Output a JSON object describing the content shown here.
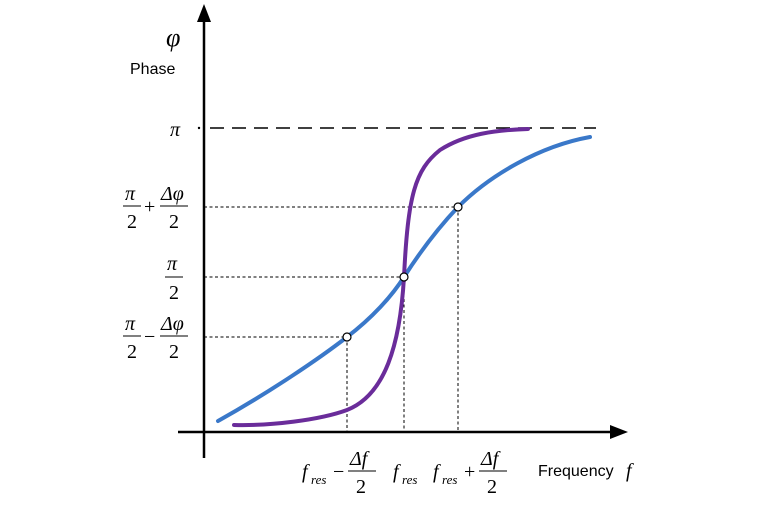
{
  "diagram": {
    "y_axis": {
      "symbol": "φ",
      "label": "Phase"
    },
    "x_axis": {
      "label": "Frequency",
      "symbol": "f"
    },
    "y_ticks": {
      "pi": "π",
      "upper": {
        "num1": "π",
        "den1": "2",
        "op": "+",
        "num2": "Δφ",
        "den2": "2"
      },
      "mid": {
        "num": "π",
        "den": "2"
      },
      "lower": {
        "num1": "π",
        "den1": "2",
        "op": "−",
        "num2": "Δφ",
        "den2": "2"
      }
    },
    "x_ticks": {
      "left": {
        "base": "f",
        "sub": "res",
        "op": "−",
        "num": "Δf",
        "den": "2"
      },
      "center": {
        "base": "f",
        "sub": "res"
      },
      "right": {
        "base": "f",
        "sub": "res",
        "op": "+",
        "num": "Δf",
        "den": "2"
      }
    },
    "colors": {
      "broad_curve": "#3a78c9",
      "sharp_curve": "#6a2c9a",
      "axes": "#000000"
    }
  }
}
